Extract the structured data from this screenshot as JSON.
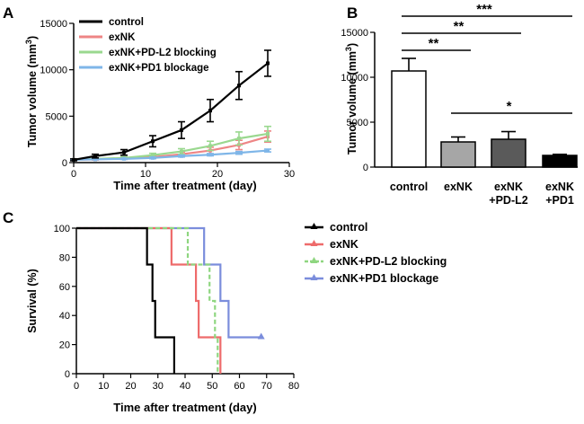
{
  "panels": {
    "a": "A",
    "b": "B",
    "c": "C"
  },
  "chart_data": [
    {
      "type": "line",
      "panel": "A",
      "xlabel": "Time after treatment (day)",
      "ylabel": "Tumor volume (mm",
      "ylabel_sup": "3",
      "ylabel_close": ")",
      "xlim": [
        0,
        30
      ],
      "ylim": [
        0,
        15000
      ],
      "xticks": [
        0,
        10,
        20,
        30
      ],
      "yticks": [
        0,
        5000,
        10000,
        15000
      ],
      "legend_position": "top-left",
      "series": [
        {
          "name": "control",
          "color": "#000000",
          "x": [
            0,
            3,
            7,
            11,
            15,
            19,
            23,
            27
          ],
          "values": [
            300,
            700,
            1100,
            2300,
            3500,
            5600,
            8300,
            10700
          ],
          "errors": [
            100,
            200,
            300,
            600,
            900,
            1200,
            1500,
            1400
          ]
        },
        {
          "name": "exNK",
          "color": "#ee8585",
          "x": [
            0,
            3,
            7,
            11,
            15,
            19,
            23,
            27
          ],
          "values": [
            300,
            350,
            450,
            600,
            900,
            1300,
            1900,
            2800
          ],
          "errors": [
            50,
            80,
            100,
            150,
            250,
            350,
            500,
            600
          ]
        },
        {
          "name": "exNK+PD-L2 blocking",
          "color": "#9ad88f",
          "x": [
            0,
            3,
            7,
            11,
            15,
            19,
            23,
            27
          ],
          "values": [
            300,
            400,
            500,
            800,
            1200,
            1800,
            2600,
            3100
          ],
          "errors": [
            50,
            80,
            120,
            200,
            300,
            500,
            700,
            800
          ]
        },
        {
          "name": "exNK+PD1 blockage",
          "color": "#7fb6e8",
          "x": [
            0,
            3,
            7,
            11,
            15,
            19,
            23,
            27
          ],
          "values": [
            300,
            350,
            400,
            500,
            700,
            850,
            1050,
            1300
          ],
          "errors": [
            40,
            50,
            60,
            80,
            100,
            120,
            150,
            150
          ]
        }
      ]
    },
    {
      "type": "bar",
      "panel": "B",
      "ylabel": "Tumor volume (mm",
      "ylabel_sup": "3",
      "ylabel_close": ")",
      "ylim": [
        0,
        15000
      ],
      "yticks": [
        0,
        5000,
        10000,
        15000
      ],
      "categories": [
        [
          "control"
        ],
        [
          "exNK"
        ],
        [
          "exNK",
          "+PD-L2"
        ],
        [
          "exNK",
          "+PD1"
        ]
      ],
      "values": [
        10700,
        2800,
        3100,
        1300
      ],
      "errors": [
        1400,
        550,
        850,
        120
      ],
      "colors": [
        "#ffffff",
        "#a6a6a6",
        "#5a5a5a",
        "#000000"
      ],
      "significance": [
        {
          "from": 0,
          "to": 3,
          "label": "***"
        },
        {
          "from": 0,
          "to": 2,
          "label": "**"
        },
        {
          "from": 0,
          "to": 1,
          "label": "**"
        },
        {
          "from": 1,
          "to": 3,
          "label": "*"
        }
      ]
    },
    {
      "type": "line",
      "subtype": "step",
      "panel": "C",
      "xlabel": "Time after treatment (day)",
      "ylabel": "Survival (%)",
      "xlim": [
        0,
        80
      ],
      "ylim": [
        0,
        100
      ],
      "xticks": [
        0,
        10,
        20,
        30,
        40,
        50,
        60,
        70,
        80
      ],
      "yticks": [
        0,
        20,
        40,
        60,
        80,
        100
      ],
      "legend_position": "right",
      "series": [
        {
          "name": "control",
          "color": "#000000",
          "dash": "",
          "points": [
            [
              0,
              100
            ],
            [
              26,
              100
            ],
            [
              26,
              75
            ],
            [
              28,
              75
            ],
            [
              28,
              50
            ],
            [
              29,
              50
            ],
            [
              29,
              25
            ],
            [
              36,
              25
            ],
            [
              36,
              0
            ]
          ],
          "censored": []
        },
        {
          "name": "exNK",
          "color": "#ee6b6b",
          "dash": "",
          "points": [
            [
              0,
              100
            ],
            [
              35,
              100
            ],
            [
              35,
              75
            ],
            [
              44,
              75
            ],
            [
              44,
              50
            ],
            [
              45,
              50
            ],
            [
              45,
              25
            ],
            [
              53,
              25
            ],
            [
              53,
              0
            ]
          ],
          "censored": []
        },
        {
          "name": "exNK+PD-L2 blocking",
          "color": "#8fd680",
          "dash": "5,3",
          "points": [
            [
              0,
              100
            ],
            [
              41,
              100
            ],
            [
              41,
              75
            ],
            [
              49,
              75
            ],
            [
              49,
              50
            ],
            [
              51,
              50
            ],
            [
              51,
              25
            ],
            [
              52,
              25
            ],
            [
              52,
              0
            ]
          ],
          "censored": []
        },
        {
          "name": "exNK+PD1 blockage",
          "color": "#7b8ddc",
          "dash": "",
          "points": [
            [
              0,
              100
            ],
            [
              47,
              100
            ],
            [
              47,
              75
            ],
            [
              53,
              75
            ],
            [
              53,
              50
            ],
            [
              56,
              50
            ],
            [
              56,
              25
            ],
            [
              68,
              25
            ]
          ],
          "censored": [
            [
              68,
              25
            ]
          ]
        }
      ]
    }
  ]
}
